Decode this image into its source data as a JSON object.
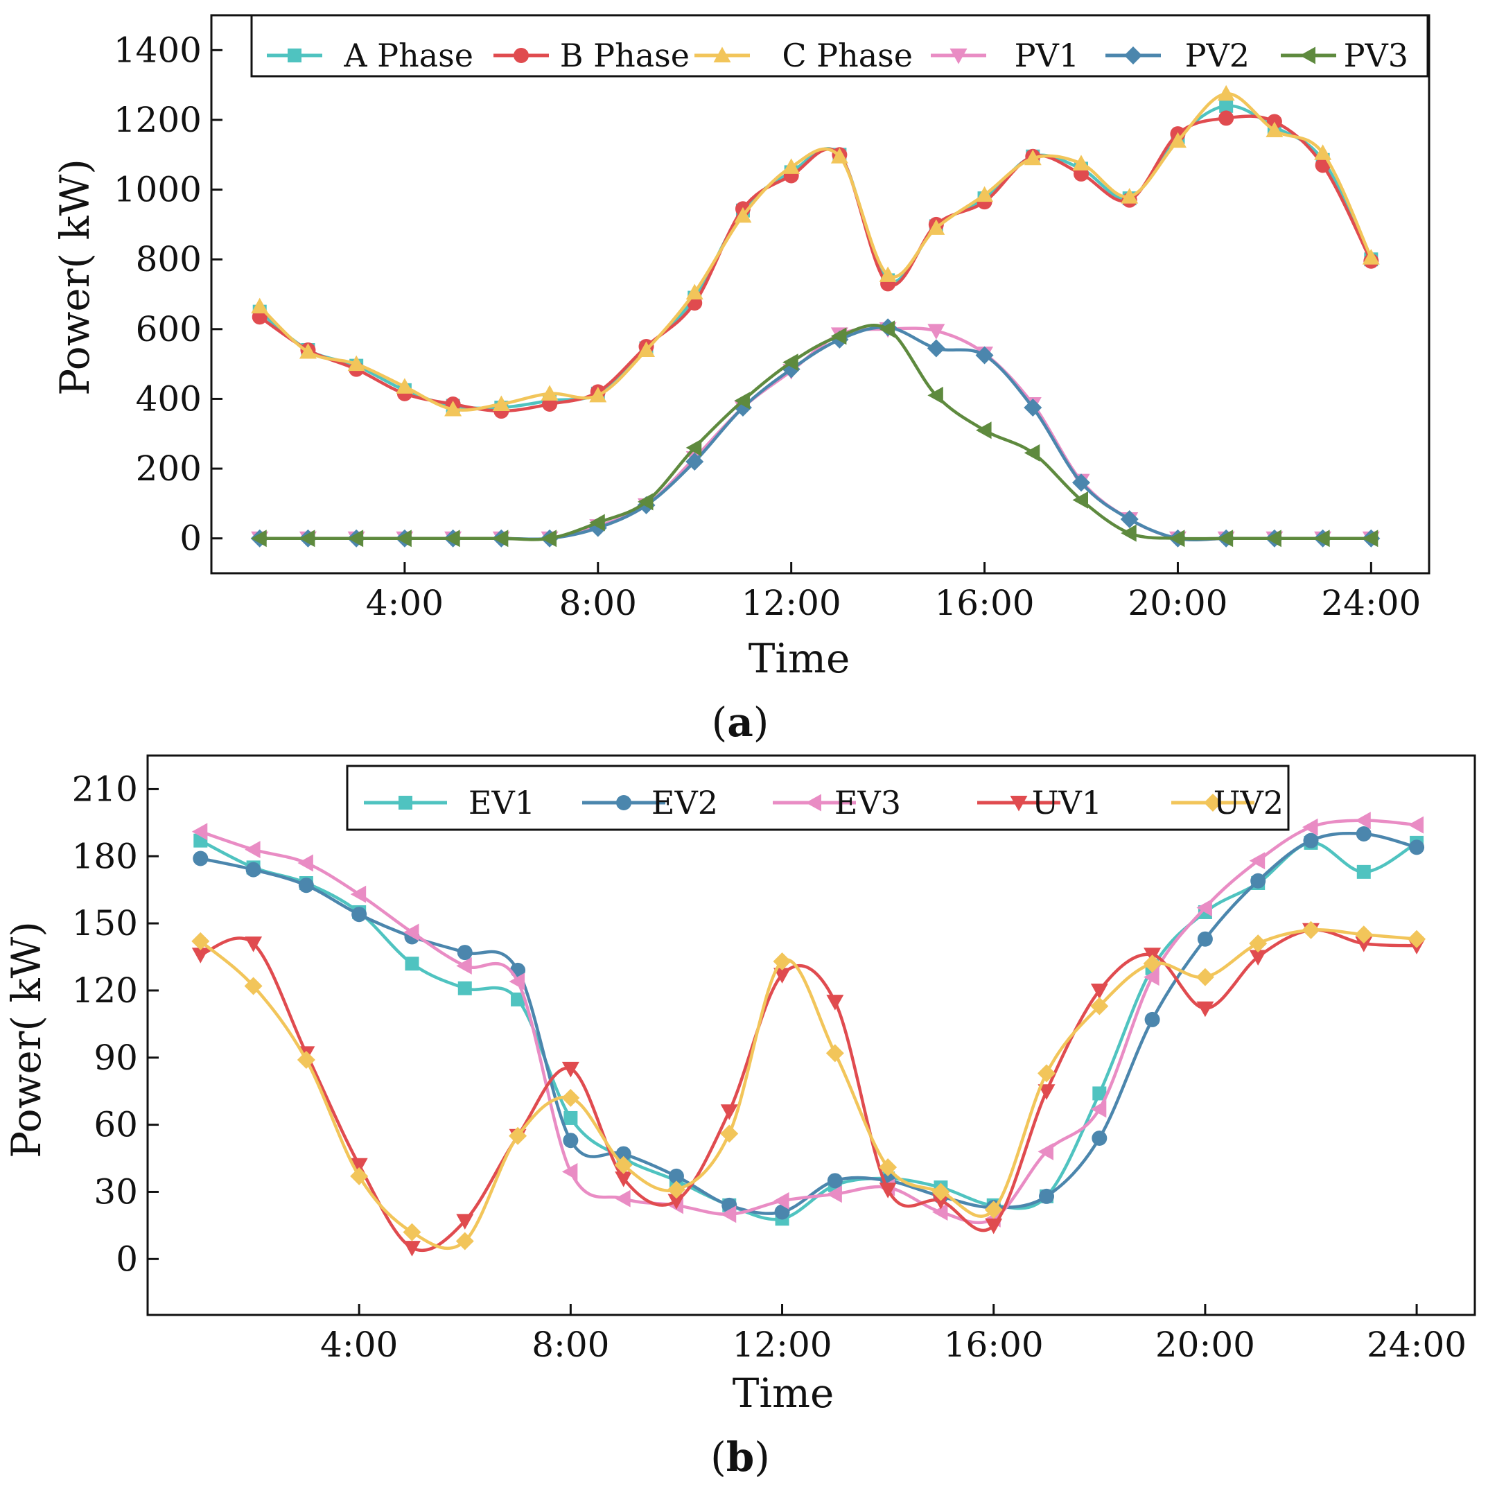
{
  "chart_data": [
    {
      "type": "line",
      "panel": "a",
      "caption_letter": "a",
      "xlabel": "Time",
      "ylabel": "Power( kW)",
      "x": [
        1,
        2,
        3,
        4,
        5,
        6,
        7,
        8,
        9,
        10,
        11,
        12,
        13,
        14,
        15,
        16,
        17,
        18,
        19,
        20,
        21,
        22,
        23,
        24
      ],
      "xlim": [
        0,
        25.2
      ],
      "ylim": [
        -100,
        1500
      ],
      "xticks": [
        {
          "v": 4,
          "label": "4:00"
        },
        {
          "v": 8,
          "label": "8:00"
        },
        {
          "v": 12,
          "label": "12:00"
        },
        {
          "v": 16,
          "label": "16:00"
        },
        {
          "v": 20,
          "label": "20:00"
        },
        {
          "v": 24,
          "label": "24:00"
        }
      ],
      "yticks": [
        {
          "v": 0,
          "label": "0"
        },
        {
          "v": 200,
          "label": "200"
        },
        {
          "v": 400,
          "label": "400"
        },
        {
          "v": 600,
          "label": "600"
        },
        {
          "v": 800,
          "label": "800"
        },
        {
          "v": 1000,
          "label": "1000"
        },
        {
          "v": 1200,
          "label": "1200"
        },
        {
          "v": 1400,
          "label": "1400"
        }
      ],
      "legend_position": "top",
      "series": [
        {
          "name": "A Phase",
          "color": "#4fc3c0",
          "marker": "square",
          "values": [
            650,
            540,
            495,
            425,
            380,
            375,
            395,
            415,
            545,
            690,
            940,
            1050,
            1100,
            740,
            895,
            975,
            1095,
            1060,
            975,
            1150,
            1240,
            1180,
            1085,
            800
          ]
        },
        {
          "name": "B Phase",
          "color": "#e04b4f",
          "marker": "circle",
          "values": [
            635,
            540,
            485,
            415,
            385,
            365,
            385,
            420,
            550,
            675,
            945,
            1040,
            1100,
            730,
            900,
            965,
            1095,
            1045,
            970,
            1160,
            1205,
            1195,
            1070,
            795
          ]
        },
        {
          "name": "C Phase",
          "color": "#f2c55a",
          "marker": "triangle-up",
          "values": [
            665,
            535,
            500,
            435,
            370,
            385,
            415,
            410,
            540,
            705,
            925,
            1065,
            1095,
            755,
            890,
            985,
            1090,
            1075,
            980,
            1140,
            1275,
            1170,
            1105,
            805
          ]
        },
        {
          "name": "PV1",
          "color": "#e98cc4",
          "marker": "triangle-down",
          "values": [
            0,
            0,
            0,
            0,
            0,
            0,
            0,
            35,
            95,
            230,
            375,
            480,
            585,
            600,
            595,
            530,
            385,
            165,
            55,
            0,
            0,
            0,
            0,
            0
          ]
        },
        {
          "name": "PV2",
          "color": "#4b86ad",
          "marker": "diamond",
          "values": [
            0,
            0,
            0,
            0,
            0,
            0,
            0,
            30,
            95,
            220,
            375,
            485,
            570,
            605,
            545,
            525,
            375,
            160,
            55,
            0,
            0,
            0,
            0,
            0
          ]
        },
        {
          "name": "PV3",
          "color": "#5e8a3e",
          "marker": "triangle-left",
          "values": [
            0,
            0,
            0,
            0,
            0,
            0,
            0,
            45,
            105,
            260,
            395,
            505,
            580,
            600,
            410,
            310,
            245,
            110,
            15,
            0,
            0,
            0,
            0,
            0
          ]
        }
      ]
    },
    {
      "type": "line",
      "panel": "b",
      "caption_letter": "b",
      "xlabel": "Time",
      "ylabel": "Power( kW)",
      "x": [
        1,
        2,
        3,
        4,
        5,
        6,
        7,
        8,
        9,
        10,
        11,
        12,
        13,
        14,
        15,
        16,
        17,
        18,
        19,
        20,
        21,
        22,
        23,
        24
      ],
      "xlim": [
        0,
        25.1
      ],
      "ylim": [
        -25,
        225
      ],
      "xticks": [
        {
          "v": 4,
          "label": "4:00"
        },
        {
          "v": 8,
          "label": "8:00"
        },
        {
          "v": 12,
          "label": "12:00"
        },
        {
          "v": 16,
          "label": "16:00"
        },
        {
          "v": 20,
          "label": "20:00"
        },
        {
          "v": 24,
          "label": "24:00"
        }
      ],
      "yticks": [
        {
          "v": 0,
          "label": "0"
        },
        {
          "v": 30,
          "label": "30"
        },
        {
          "v": 60,
          "label": "60"
        },
        {
          "v": 90,
          "label": "90"
        },
        {
          "v": 120,
          "label": "120"
        },
        {
          "v": 150,
          "label": "150"
        },
        {
          "v": 180,
          "label": "180"
        },
        {
          "v": 210,
          "label": "210"
        }
      ],
      "legend_position": "top",
      "series": [
        {
          "name": "EV1",
          "color": "#4fc3c0",
          "marker": "square",
          "values": [
            187,
            175,
            168,
            155,
            132,
            121,
            116,
            63,
            45,
            35,
            24,
            18,
            33,
            36,
            32,
            24,
            28,
            74,
            130,
            155,
            168,
            186,
            173,
            186
          ]
        },
        {
          "name": "EV2",
          "color": "#4b86ad",
          "marker": "circle",
          "values": [
            179,
            174,
            167,
            154,
            144,
            137,
            129,
            53,
            47,
            37,
            24,
            21,
            35,
            35,
            28,
            23,
            28,
            54,
            107,
            143,
            169,
            187,
            190,
            184
          ]
        },
        {
          "name": "EV3",
          "color": "#e98cc4",
          "marker": "triangle-left",
          "values": [
            191,
            183,
            177,
            163,
            146,
            131,
            124,
            39,
            27,
            24,
            20,
            26,
            29,
            32,
            21,
            18,
            48,
            67,
            126,
            157,
            178,
            193,
            196,
            194
          ]
        },
        {
          "name": "UV1",
          "color": "#e04b4f",
          "marker": "triangle-down",
          "values": [
            136,
            141,
            92,
            42,
            5,
            17,
            55,
            85,
            36,
            26,
            66,
            127,
            115,
            31,
            26,
            15,
            75,
            120,
            136,
            112,
            135,
            147,
            141,
            140
          ]
        },
        {
          "name": "UV2",
          "color": "#f2c55a",
          "marker": "diamond",
          "values": [
            142,
            122,
            89,
            37,
            12,
            8,
            55,
            72,
            42,
            31,
            56,
            133,
            92,
            41,
            30,
            22,
            83,
            113,
            132,
            126,
            141,
            147,
            145,
            143
          ]
        }
      ]
    }
  ]
}
